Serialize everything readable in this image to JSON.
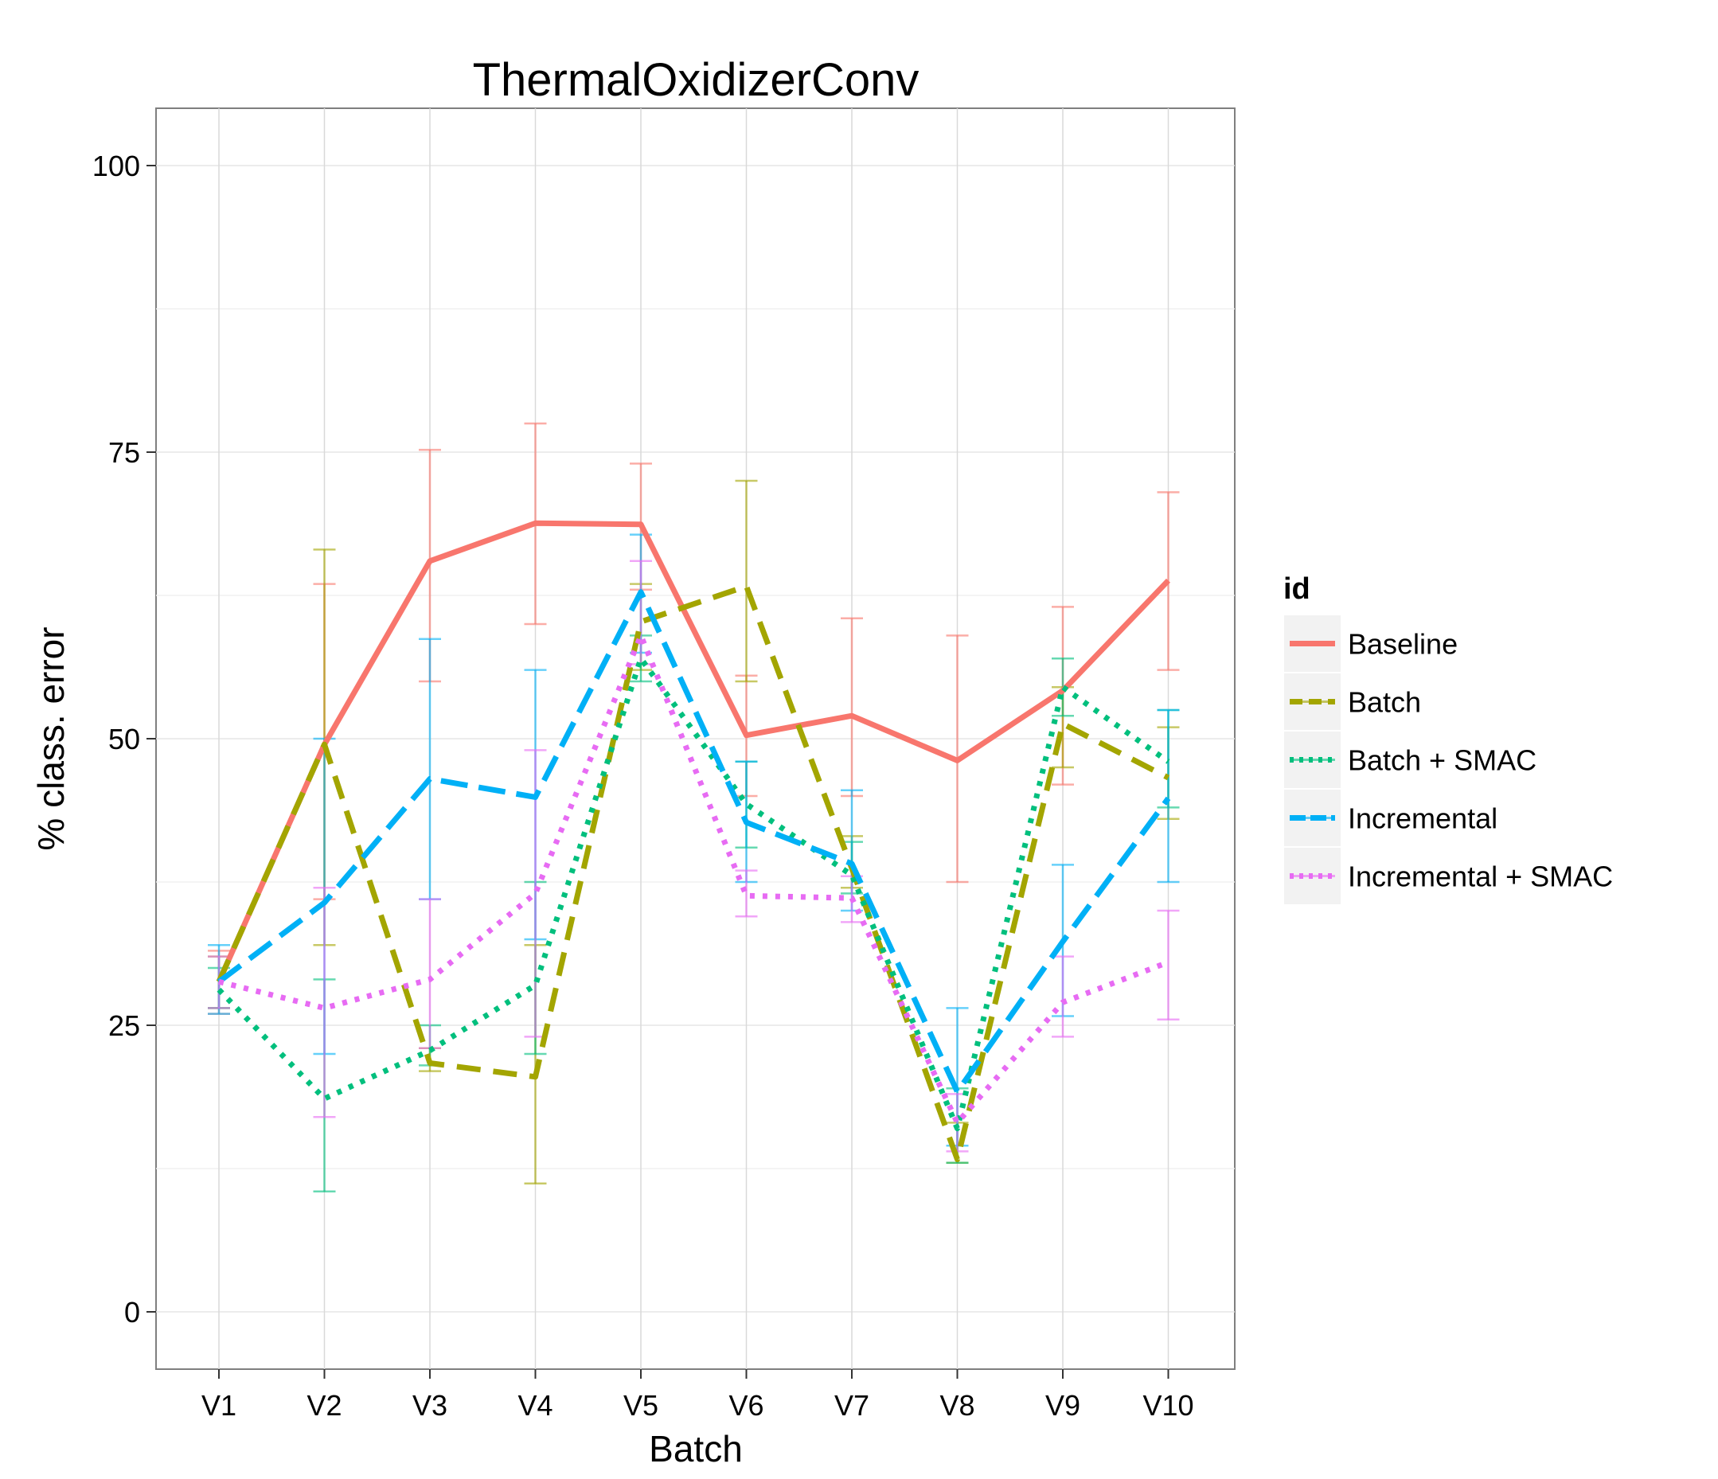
{
  "chart_data": {
    "type": "line",
    "title": "ThermalOxidizerConv",
    "xlabel": "Batch",
    "ylabel": "% class. error",
    "categories": [
      "V1",
      "V2",
      "V3",
      "V4",
      "V5",
      "V6",
      "V7",
      "V8",
      "V9",
      "V10"
    ],
    "ylim": [
      -5,
      105
    ],
    "yticks": [
      0,
      25,
      50,
      75,
      100
    ],
    "grid": true,
    "legend": {
      "title": "id",
      "position": "right"
    },
    "series": [
      {
        "name": "Baseline",
        "color": "#F8766D",
        "dash": "solid",
        "values": [
          28.8,
          49.5,
          65.5,
          68.8,
          68.7,
          50.3,
          52.0,
          48.1,
          54.2,
          63.8
        ],
        "lower": [
          26.0,
          36.0,
          55.0,
          60.0,
          63.0,
          45.0,
          45.0,
          37.5,
          46.0,
          56.0
        ],
        "upper": [
          31.5,
          63.5,
          75.2,
          77.5,
          74.0,
          55.5,
          60.5,
          59.0,
          61.5,
          71.5
        ]
      },
      {
        "name": "Batch",
        "color": "#A3A500",
        "dash": "dashed",
        "values": [
          28.8,
          49.5,
          21.7,
          20.5,
          60.2,
          63.3,
          38.7,
          13.3,
          51.3,
          46.6
        ],
        "lower": [
          26.5,
          32.0,
          21.0,
          11.2,
          56.0,
          55.0,
          37.0,
          13.0,
          47.5,
          43.0
        ],
        "upper": [
          31.0,
          66.5,
          23.0,
          32.0,
          63.5,
          72.5,
          41.5,
          16.5,
          54.5,
          51.0
        ]
      },
      {
        "name": "Batch + SMAC",
        "color": "#00BF7D",
        "dash": "dotted",
        "values": [
          28.1,
          18.6,
          22.8,
          28.5,
          57.0,
          44.3,
          38.1,
          16.0,
          54.5,
          48.0
        ],
        "lower": [
          26.5,
          10.5,
          21.5,
          22.5,
          55.0,
          40.5,
          36.5,
          13.0,
          52.0,
          44.0
        ],
        "upper": [
          30.0,
          29.0,
          25.0,
          37.5,
          59.0,
          48.0,
          41.0,
          19.5,
          57.0,
          52.5
        ]
      },
      {
        "name": "Incremental",
        "color": "#00B0F6",
        "dash": "longdash",
        "values": [
          28.8,
          35.7,
          46.5,
          44.9,
          62.8,
          42.7,
          39.1,
          19.2,
          32.3,
          44.8
        ],
        "lower": [
          26.0,
          22.5,
          36.0,
          32.5,
          57.5,
          37.5,
          35.0,
          14.5,
          25.8,
          37.5
        ],
        "upper": [
          32.0,
          50.0,
          58.7,
          56.0,
          67.8,
          48.0,
          45.5,
          26.5,
          39.0,
          52.5
        ]
      },
      {
        "name": "Incremental + SMAC",
        "color": "#E76BF3",
        "dash": "dotted",
        "values": [
          28.8,
          26.5,
          29.0,
          36.5,
          59.0,
          36.3,
          36.1,
          16.5,
          27.0,
          30.5
        ],
        "lower": [
          26.5,
          17.0,
          23.0,
          24.0,
          56.5,
          34.5,
          34.0,
          14.0,
          24.0,
          25.5
        ],
        "upper": [
          31.0,
          37.0,
          36.0,
          49.0,
          65.5,
          38.5,
          38.0,
          19.0,
          31.0,
          35.0
        ]
      }
    ]
  }
}
